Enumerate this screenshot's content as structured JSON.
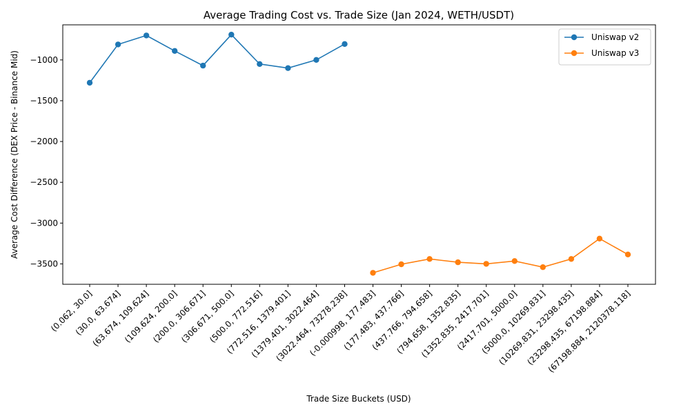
{
  "chart_data": {
    "type": "line",
    "title": "Average Trading Cost vs. Trade Size (Jan 2024, WETH/USDT)",
    "xlabel": "Trade Size Buckets (USD)",
    "ylabel": "Average Cost Difference (DEX Price - Binance Mid)",
    "ylim": [
      -3750,
      -570
    ],
    "yticks": [
      -1000,
      -1500,
      -2000,
      -2500,
      -3000,
      -3500
    ],
    "grid": false,
    "legend_position": "top-right",
    "categories": [
      "(0.062, 30.0]",
      "(30.0, 63.674]",
      "(63.674, 109.624]",
      "(109.624, 200.0]",
      "(200.0, 306.671]",
      "(306.671, 500.0]",
      "(500.0, 772.516]",
      "(772.516, 1379.401]",
      "(1379.401, 3022.464]",
      "(3022.464, 73278.238]",
      "(-0.000998, 177.483]",
      "(177.483, 437.766]",
      "(437.766, 794.658]",
      "(794.658, 1352.835]",
      "(1352.835, 2417.701]",
      "(2417.701, 5000.0]",
      "(5000.0, 10269.831]",
      "(10269.831, 23298.435]",
      "(23298.435, 67198.884]",
      "(67198.884, 2120378.118]"
    ],
    "series": [
      {
        "name": "Uniswap v2",
        "color": "#1f77b4",
        "x": [
          "(0.062, 30.0]",
          "(30.0, 63.674]",
          "(63.674, 109.624]",
          "(109.624, 200.0]",
          "(200.0, 306.671]",
          "(306.671, 500.0]",
          "(500.0, 772.516]",
          "(772.516, 1379.401]",
          "(1379.401, 3022.464]",
          "(3022.464, 73278.238]"
        ],
        "values": [
          -1280,
          -810,
          -700,
          -890,
          -1070,
          -690,
          -1050,
          -1100,
          -1000,
          -805
        ]
      },
      {
        "name": "Uniswap v3",
        "color": "#ff7f0e",
        "x": [
          "(-0.000998, 177.483]",
          "(177.483, 437.766]",
          "(437.766, 794.658]",
          "(794.658, 1352.835]",
          "(1352.835, 2417.701]",
          "(2417.701, 5000.0]",
          "(5000.0, 10269.831]",
          "(10269.831, 23298.435]",
          "(23298.435, 67198.884]",
          "(67198.884, 2120378.118]"
        ],
        "values": [
          -3610,
          -3505,
          -3440,
          -3480,
          -3500,
          -3465,
          -3540,
          -3440,
          -3190,
          -3385
        ]
      }
    ]
  }
}
